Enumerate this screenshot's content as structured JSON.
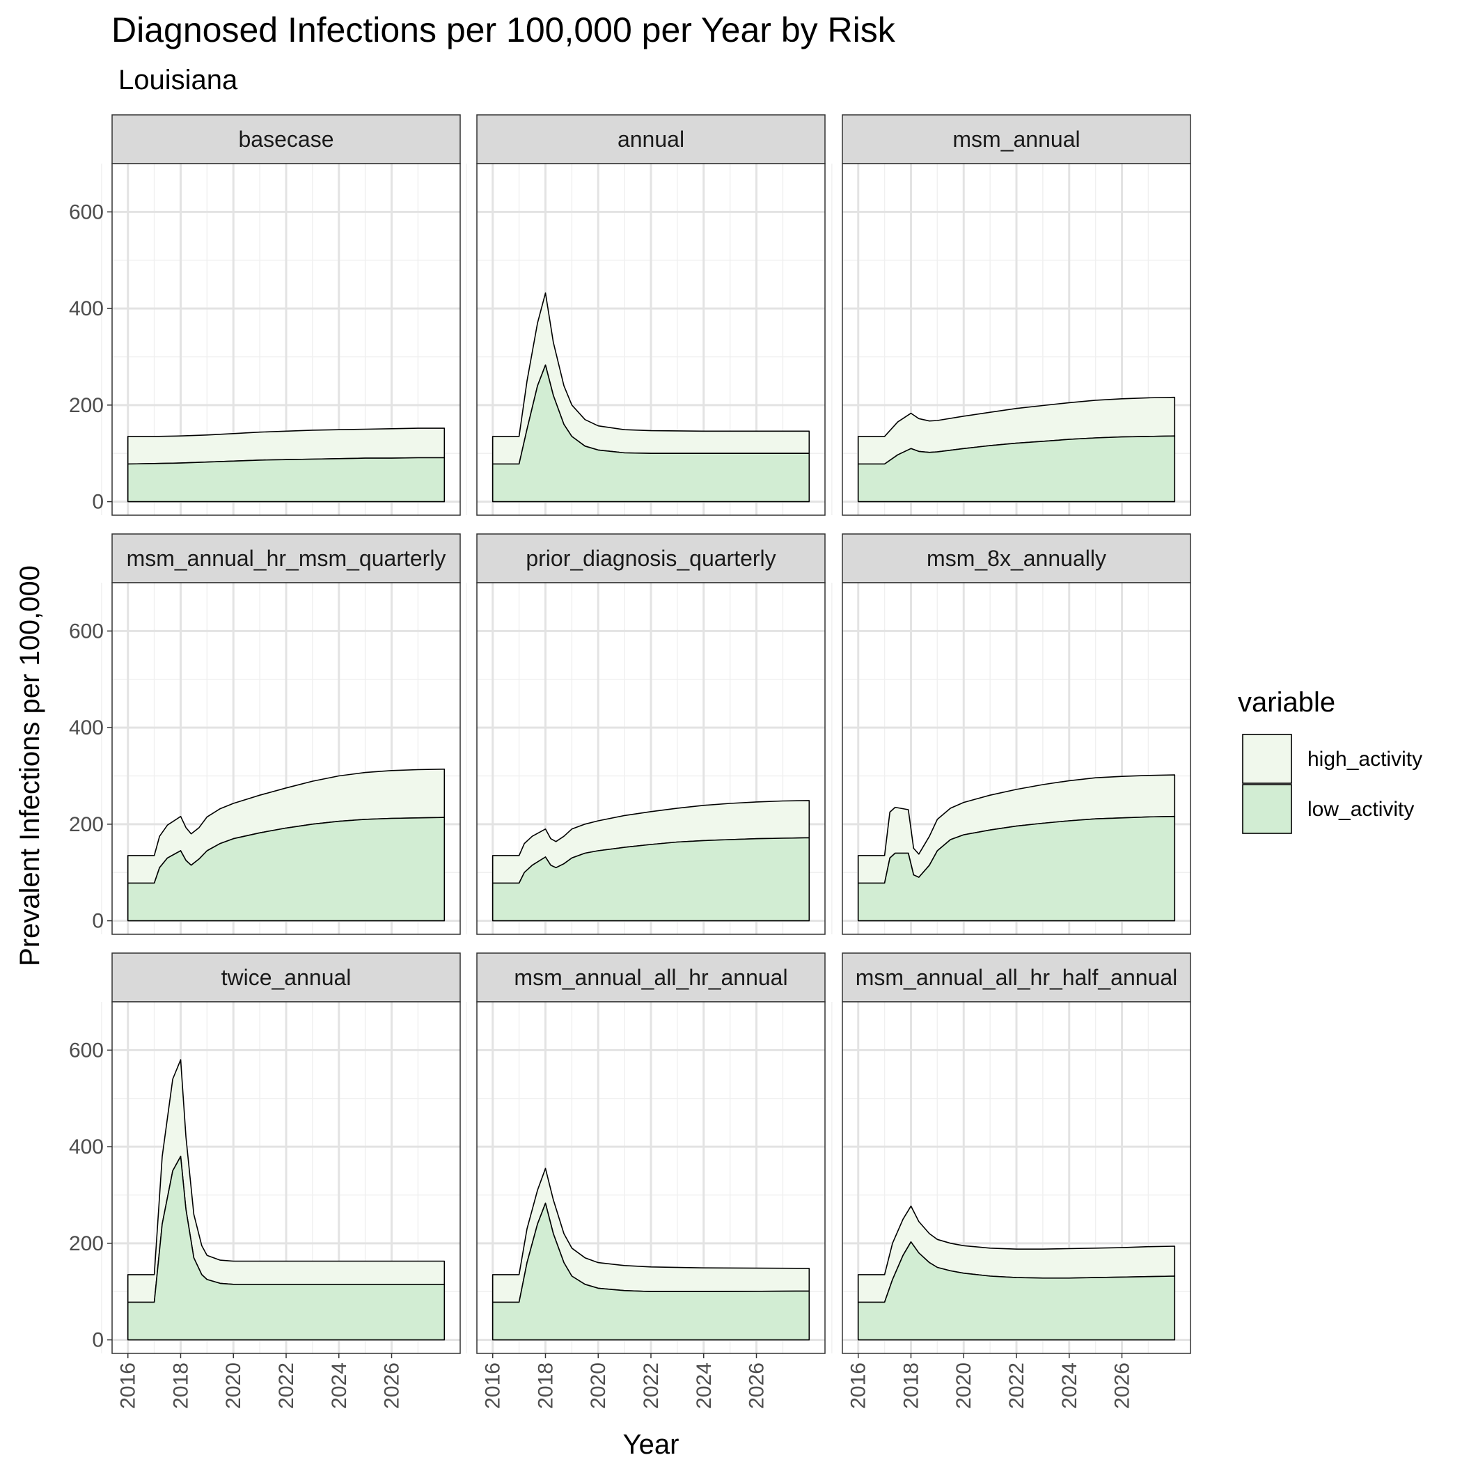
{
  "chart_data": {
    "type": "area",
    "stacked": true,
    "title": "Diagnosed Infections per 100,000 per Year by Risk",
    "subtitle": "Louisiana",
    "xlabel": "Year",
    "ylabel": "Prevalent Infections per 100,000",
    "xlim": [
      2015.4,
      2028.6
    ],
    "ylim": [
      -28,
      700
    ],
    "x_ticks": [
      2016,
      2018,
      2020,
      2022,
      2024,
      2026
    ],
    "y_ticks": [
      0,
      200,
      400,
      600
    ],
    "grid": true,
    "legend": {
      "title": "variable",
      "position": "right",
      "entries": [
        {
          "name": "high_activity",
          "color": "#f0f8ec"
        },
        {
          "name": "low_activity",
          "color": "#d2edd3"
        }
      ]
    },
    "panels": [
      {
        "name": "basecase",
        "low": [
          [
            2016,
            78
          ],
          [
            2017,
            79
          ],
          [
            2018,
            80
          ],
          [
            2019,
            82
          ],
          [
            2020,
            84
          ],
          [
            2021,
            86
          ],
          [
            2022,
            87
          ],
          [
            2023,
            88
          ],
          [
            2024,
            89
          ],
          [
            2025,
            90
          ],
          [
            2026,
            90
          ],
          [
            2027,
            91
          ],
          [
            2028,
            91
          ]
        ],
        "total": [
          [
            2016,
            135
          ],
          [
            2017,
            135
          ],
          [
            2018,
            136
          ],
          [
            2019,
            138
          ],
          [
            2020,
            141
          ],
          [
            2021,
            144
          ],
          [
            2022,
            146
          ],
          [
            2023,
            148
          ],
          [
            2024,
            149
          ],
          [
            2025,
            150
          ],
          [
            2026,
            151
          ],
          [
            2027,
            152
          ],
          [
            2028,
            152
          ]
        ]
      },
      {
        "name": "annual",
        "low": [
          [
            2016,
            78
          ],
          [
            2017,
            78
          ],
          [
            2017.3,
            150
          ],
          [
            2017.7,
            240
          ],
          [
            2018,
            283
          ],
          [
            2018.3,
            220
          ],
          [
            2018.7,
            160
          ],
          [
            2019,
            135
          ],
          [
            2019.5,
            115
          ],
          [
            2020,
            107
          ],
          [
            2021,
            101
          ],
          [
            2022,
            100
          ],
          [
            2024,
            100
          ],
          [
            2028,
            100
          ]
        ],
        "total": [
          [
            2016,
            135
          ],
          [
            2017,
            135
          ],
          [
            2017.3,
            250
          ],
          [
            2017.7,
            370
          ],
          [
            2018,
            432
          ],
          [
            2018.3,
            330
          ],
          [
            2018.7,
            240
          ],
          [
            2019,
            200
          ],
          [
            2019.5,
            170
          ],
          [
            2020,
            157
          ],
          [
            2021,
            149
          ],
          [
            2022,
            147
          ],
          [
            2024,
            146
          ],
          [
            2028,
            146
          ]
        ]
      },
      {
        "name": "msm_annual",
        "low": [
          [
            2016,
            78
          ],
          [
            2017,
            78
          ],
          [
            2017.5,
            97
          ],
          [
            2018,
            110
          ],
          [
            2018.3,
            104
          ],
          [
            2018.7,
            102
          ],
          [
            2019,
            103
          ],
          [
            2020,
            110
          ],
          [
            2021,
            116
          ],
          [
            2022,
            121
          ],
          [
            2023,
            125
          ],
          [
            2024,
            129
          ],
          [
            2025,
            132
          ],
          [
            2026,
            134
          ],
          [
            2027,
            135
          ],
          [
            2028,
            136
          ]
        ],
        "total": [
          [
            2016,
            135
          ],
          [
            2017,
            135
          ],
          [
            2017.5,
            165
          ],
          [
            2018,
            183
          ],
          [
            2018.3,
            172
          ],
          [
            2018.7,
            167
          ],
          [
            2019,
            168
          ],
          [
            2020,
            177
          ],
          [
            2021,
            185
          ],
          [
            2022,
            193
          ],
          [
            2023,
            199
          ],
          [
            2024,
            205
          ],
          [
            2025,
            210
          ],
          [
            2026,
            213
          ],
          [
            2027,
            215
          ],
          [
            2028,
            216
          ]
        ]
      },
      {
        "name": "msm_annual_hr_msm_quarterly",
        "low": [
          [
            2016,
            78
          ],
          [
            2017,
            78
          ],
          [
            2017.2,
            110
          ],
          [
            2017.5,
            130
          ],
          [
            2018,
            145
          ],
          [
            2018.2,
            125
          ],
          [
            2018.4,
            115
          ],
          [
            2018.7,
            128
          ],
          [
            2019,
            145
          ],
          [
            2019.5,
            160
          ],
          [
            2020,
            170
          ],
          [
            2021,
            182
          ],
          [
            2022,
            192
          ],
          [
            2023,
            200
          ],
          [
            2024,
            206
          ],
          [
            2025,
            210
          ],
          [
            2026,
            212
          ],
          [
            2027,
            213
          ],
          [
            2028,
            214
          ]
        ],
        "total": [
          [
            2016,
            135
          ],
          [
            2017,
            135
          ],
          [
            2017.2,
            175
          ],
          [
            2017.5,
            198
          ],
          [
            2018,
            216
          ],
          [
            2018.2,
            193
          ],
          [
            2018.4,
            180
          ],
          [
            2018.7,
            193
          ],
          [
            2019,
            215
          ],
          [
            2019.5,
            232
          ],
          [
            2020,
            243
          ],
          [
            2021,
            260
          ],
          [
            2022,
            275
          ],
          [
            2023,
            289
          ],
          [
            2024,
            300
          ],
          [
            2025,
            307
          ],
          [
            2026,
            311
          ],
          [
            2027,
            313
          ],
          [
            2028,
            314
          ]
        ]
      },
      {
        "name": "prior_diagnosis_quarterly",
        "low": [
          [
            2016,
            78
          ],
          [
            2017,
            78
          ],
          [
            2017.2,
            100
          ],
          [
            2017.5,
            115
          ],
          [
            2018,
            132
          ],
          [
            2018.2,
            115
          ],
          [
            2018.4,
            110
          ],
          [
            2018.7,
            118
          ],
          [
            2019,
            130
          ],
          [
            2019.5,
            140
          ],
          [
            2020,
            145
          ],
          [
            2021,
            152
          ],
          [
            2022,
            158
          ],
          [
            2023,
            163
          ],
          [
            2024,
            166
          ],
          [
            2025,
            168
          ],
          [
            2026,
            170
          ],
          [
            2027,
            171
          ],
          [
            2028,
            172
          ]
        ],
        "total": [
          [
            2016,
            135
          ],
          [
            2017,
            135
          ],
          [
            2017.2,
            160
          ],
          [
            2017.5,
            175
          ],
          [
            2018,
            190
          ],
          [
            2018.2,
            170
          ],
          [
            2018.4,
            164
          ],
          [
            2018.7,
            175
          ],
          [
            2019,
            190
          ],
          [
            2019.5,
            200
          ],
          [
            2020,
            207
          ],
          [
            2021,
            218
          ],
          [
            2022,
            226
          ],
          [
            2023,
            233
          ],
          [
            2024,
            239
          ],
          [
            2025,
            243
          ],
          [
            2026,
            246
          ],
          [
            2027,
            248
          ],
          [
            2028,
            249
          ]
        ]
      },
      {
        "name": "msm_8x_annually",
        "low": [
          [
            2016,
            78
          ],
          [
            2017,
            78
          ],
          [
            2017.2,
            130
          ],
          [
            2017.4,
            140
          ],
          [
            2017.9,
            140
          ],
          [
            2018.1,
            95
          ],
          [
            2018.3,
            90
          ],
          [
            2018.7,
            115
          ],
          [
            2019,
            145
          ],
          [
            2019.5,
            168
          ],
          [
            2020,
            178
          ],
          [
            2021,
            188
          ],
          [
            2022,
            196
          ],
          [
            2023,
            202
          ],
          [
            2024,
            207
          ],
          [
            2025,
            211
          ],
          [
            2026,
            213
          ],
          [
            2027,
            215
          ],
          [
            2028,
            216
          ]
        ],
        "total": [
          [
            2016,
            135
          ],
          [
            2017,
            135
          ],
          [
            2017.2,
            225
          ],
          [
            2017.4,
            235
          ],
          [
            2017.9,
            230
          ],
          [
            2018.1,
            150
          ],
          [
            2018.3,
            138
          ],
          [
            2018.7,
            175
          ],
          [
            2019,
            210
          ],
          [
            2019.5,
            233
          ],
          [
            2020,
            245
          ],
          [
            2021,
            260
          ],
          [
            2022,
            272
          ],
          [
            2023,
            282
          ],
          [
            2024,
            290
          ],
          [
            2025,
            296
          ],
          [
            2026,
            299
          ],
          [
            2027,
            301
          ],
          [
            2028,
            302
          ]
        ]
      },
      {
        "name": "twice_annual",
        "low": [
          [
            2016,
            78
          ],
          [
            2017,
            78
          ],
          [
            2017.3,
            240
          ],
          [
            2017.7,
            350
          ],
          [
            2018,
            380
          ],
          [
            2018.2,
            270
          ],
          [
            2018.5,
            170
          ],
          [
            2018.8,
            135
          ],
          [
            2019,
            125
          ],
          [
            2019.5,
            117
          ],
          [
            2020,
            115
          ],
          [
            2021,
            115
          ],
          [
            2022,
            115
          ],
          [
            2024,
            115
          ],
          [
            2028,
            115
          ]
        ],
        "total": [
          [
            2016,
            135
          ],
          [
            2017,
            135
          ],
          [
            2017.3,
            380
          ],
          [
            2017.7,
            540
          ],
          [
            2018,
            580
          ],
          [
            2018.2,
            420
          ],
          [
            2018.5,
            260
          ],
          [
            2018.8,
            195
          ],
          [
            2019,
            175
          ],
          [
            2019.5,
            165
          ],
          [
            2020,
            163
          ],
          [
            2021,
            163
          ],
          [
            2022,
            163
          ],
          [
            2024,
            163
          ],
          [
            2028,
            163
          ]
        ]
      },
      {
        "name": "msm_annual_all_hr_annual",
        "low": [
          [
            2016,
            78
          ],
          [
            2017,
            78
          ],
          [
            2017.3,
            160
          ],
          [
            2017.7,
            240
          ],
          [
            2018,
            283
          ],
          [
            2018.3,
            220
          ],
          [
            2018.7,
            160
          ],
          [
            2019,
            132
          ],
          [
            2019.5,
            115
          ],
          [
            2020,
            107
          ],
          [
            2021,
            102
          ],
          [
            2022,
            100
          ],
          [
            2024,
            100
          ],
          [
            2028,
            101
          ]
        ],
        "total": [
          [
            2016,
            135
          ],
          [
            2017,
            135
          ],
          [
            2017.3,
            230
          ],
          [
            2017.7,
            310
          ],
          [
            2018,
            355
          ],
          [
            2018.3,
            290
          ],
          [
            2018.7,
            220
          ],
          [
            2019,
            190
          ],
          [
            2019.5,
            170
          ],
          [
            2020,
            160
          ],
          [
            2021,
            154
          ],
          [
            2022,
            151
          ],
          [
            2024,
            149
          ],
          [
            2028,
            148
          ]
        ]
      },
      {
        "name": "msm_annual_all_hr_half_annual",
        "low": [
          [
            2016,
            78
          ],
          [
            2017,
            78
          ],
          [
            2017.3,
            125
          ],
          [
            2017.7,
            175
          ],
          [
            2018,
            203
          ],
          [
            2018.3,
            180
          ],
          [
            2018.7,
            160
          ],
          [
            2019,
            150
          ],
          [
            2019.5,
            143
          ],
          [
            2020,
            138
          ],
          [
            2021,
            132
          ],
          [
            2022,
            129
          ],
          [
            2023,
            128
          ],
          [
            2024,
            128
          ],
          [
            2025,
            129
          ],
          [
            2026,
            130
          ],
          [
            2027,
            131
          ],
          [
            2028,
            132
          ]
        ],
        "total": [
          [
            2016,
            135
          ],
          [
            2017,
            135
          ],
          [
            2017.3,
            200
          ],
          [
            2017.7,
            250
          ],
          [
            2018,
            277
          ],
          [
            2018.3,
            245
          ],
          [
            2018.7,
            220
          ],
          [
            2019,
            208
          ],
          [
            2019.5,
            200
          ],
          [
            2020,
            195
          ],
          [
            2021,
            190
          ],
          [
            2022,
            188
          ],
          [
            2023,
            188
          ],
          [
            2024,
            189
          ],
          [
            2025,
            190
          ],
          [
            2026,
            191
          ],
          [
            2027,
            193
          ],
          [
            2028,
            194
          ]
        ]
      }
    ]
  }
}
